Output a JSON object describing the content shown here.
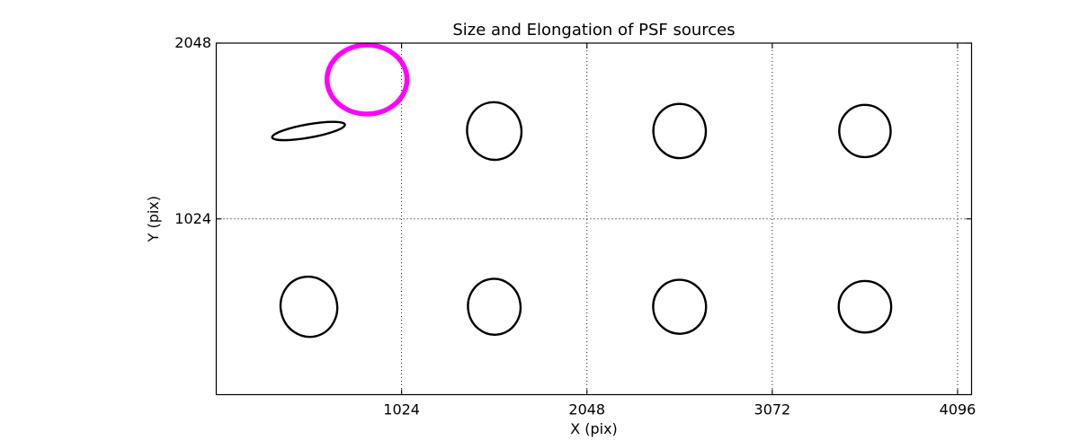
{
  "title": "Size and Elongation of PSF sources",
  "axes": {
    "xlabel": "X (pix)",
    "ylabel": "Y (pix)"
  },
  "colors": {
    "outlier": "#ff00ff",
    "line": "#000000",
    "background": "#ffffff"
  },
  "chart_data": {
    "type": "scatter",
    "marker": "ellipse",
    "title": "Size and Elongation of PSF sources",
    "xlabel": "X (pix)",
    "ylabel": "Y (pix)",
    "xlim": [
      0,
      4173
    ],
    "ylim": [
      0,
      2048
    ],
    "x_tick_values": [
      1024,
      2048,
      3072,
      4096
    ],
    "x_tick_labels": [
      "1024",
      "2048",
      "3072",
      "4096"
    ],
    "y_tick_values": [
      1024,
      2048
    ],
    "y_tick_labels": [
      "1024",
      "2048"
    ],
    "grid": {
      "style": "dotted",
      "color": "#000000"
    },
    "legend": "none",
    "ellipses": [
      {
        "name": "psf-outlier-circle",
        "x": 833,
        "y": 1836,
        "rx": 221,
        "ry": 201,
        "tilt_deg": 0,
        "color": "#ff00ff",
        "linewidth": 5.5
      },
      {
        "name": "psf-elongated-ellipse",
        "x": 510,
        "y": 1536,
        "rx": 204,
        "ry": 39,
        "tilt_deg": -10,
        "color": "#000000",
        "linewidth": 2.4
      },
      {
        "name": "psf-ellipse",
        "x": 1536,
        "y": 1536,
        "rx": 150,
        "ry": 168,
        "tilt_deg": -10,
        "color": "#000000",
        "linewidth": 2.4
      },
      {
        "name": "psf-ellipse",
        "x": 2560,
        "y": 1536,
        "rx": 145,
        "ry": 158,
        "tilt_deg": -5,
        "color": "#000000",
        "linewidth": 2.4
      },
      {
        "name": "psf-ellipse",
        "x": 3584,
        "y": 1536,
        "rx": 142,
        "ry": 152,
        "tilt_deg": -3,
        "color": "#000000",
        "linewidth": 2.4
      },
      {
        "name": "psf-ellipse",
        "x": 512,
        "y": 512,
        "rx": 156,
        "ry": 176,
        "tilt_deg": -13,
        "color": "#000000",
        "linewidth": 2.4
      },
      {
        "name": "psf-ellipse",
        "x": 1536,
        "y": 512,
        "rx": 145,
        "ry": 163,
        "tilt_deg": -8,
        "color": "#000000",
        "linewidth": 2.4
      },
      {
        "name": "psf-ellipse",
        "x": 2560,
        "y": 512,
        "rx": 146,
        "ry": 157,
        "tilt_deg": -5,
        "color": "#000000",
        "linewidth": 2.4
      },
      {
        "name": "psf-ellipse",
        "x": 3584,
        "y": 512,
        "rx": 145,
        "ry": 150,
        "tilt_deg": 0,
        "color": "#000000",
        "linewidth": 2.4
      }
    ]
  }
}
